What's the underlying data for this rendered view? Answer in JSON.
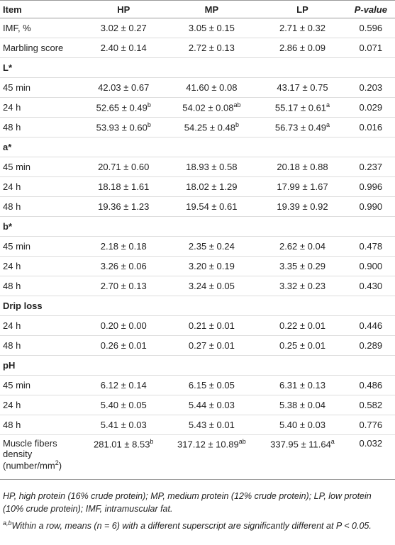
{
  "table": {
    "header": [
      "Item",
      "HP",
      "MP",
      "LP",
      "P-value"
    ],
    "rows": [
      [
        "IMF, %",
        "3.02 ± 0.27",
        "3.05 ± 0.15",
        "2.71 ± 0.32",
        "0.596"
      ],
      [
        "Marbling score",
        "2.40 ± 0.14",
        "2.72 ± 0.13",
        "2.86 ± 0.09",
        "0.071"
      ],
      [
        "L*"
      ],
      [
        "45 min",
        "42.03 ± 0.67",
        "41.60 ± 0.08",
        "43.17 ± 0.75",
        "0.203"
      ],
      [
        "24 h",
        {
          "text": "52.65 ± 0.49",
          "sup": "b"
        },
        {
          "text": "54.02 ± 0.08",
          "sup": "ab"
        },
        {
          "text": "55.17 ± 0.61",
          "sup": "a"
        },
        "0.029"
      ],
      [
        "48 h",
        {
          "text": "53.93 ± 0.60",
          "sup": "b"
        },
        {
          "text": "54.25 ± 0.48",
          "sup": "b"
        },
        {
          "text": "56.73 ± 0.49",
          "sup": "a"
        },
        "0.016"
      ],
      [
        "a*"
      ],
      [
        "45 min",
        "20.71 ± 0.60",
        "18.93 ± 0.58",
        "20.18 ± 0.88",
        "0.237"
      ],
      [
        "24 h",
        "18.18 ± 1.61",
        "18.02 ± 1.29",
        "17.99 ± 1.67",
        "0.996"
      ],
      [
        "48 h",
        "19.36 ± 1.23",
        "19.54 ± 0.61",
        "19.39 ± 0.92",
        "0.990"
      ],
      [
        "b*"
      ],
      [
        "45 min",
        "2.18 ± 0.18",
        "2.35 ± 0.24",
        "2.62 ± 0.04",
        "0.478"
      ],
      [
        "24 h",
        "3.26 ± 0.06",
        "3.20 ± 0.19",
        "3.35 ± 0.29",
        "0.900"
      ],
      [
        "48 h",
        "2.70 ± 0.13",
        "3.24 ± 0.05",
        "3.32 ± 0.23",
        "0.430"
      ],
      [
        "Drip loss"
      ],
      [
        "24 h",
        "0.20 ± 0.00",
        "0.21 ± 0.01",
        "0.22 ± 0.01",
        "0.446"
      ],
      [
        "48 h",
        "0.26 ± 0.01",
        "0.27 ± 0.01",
        "0.25 ± 0.01",
        "0.289"
      ],
      [
        "pH"
      ],
      [
        "45 min",
        "6.12 ± 0.14",
        "6.15 ± 0.05",
        "6.31 ± 0.13",
        "0.486"
      ],
      [
        "24 h",
        "5.40 ± 0.05",
        "5.44 ± 0.03",
        "5.38 ± 0.04",
        "0.582"
      ],
      [
        "48 h",
        "5.41 ± 0.03",
        "5.43 ± 0.01",
        "5.40 ± 0.03",
        "0.776"
      ],
      [
        {
          "text": "Muscle fibers density (number/mm",
          "sup": "2",
          "after": ")"
        },
        {
          "text": "281.01 ± 8.53",
          "sup": "b"
        },
        {
          "text": "317.12 ± 10.89",
          "sup": "ab"
        },
        {
          "text": "337.95 ± 11.64",
          "sup": "a"
        },
        "0.032"
      ]
    ]
  },
  "footnotes": [
    {
      "text": "HP, high protein (16% crude protein); MP, medium protein (12% crude protein); LP, low protein (10% crude protein); IMF, intramuscular fat."
    },
    {
      "sup": "a,b",
      "text": "Within a row, means (n = 6) with a different superscript are significantly different at P < 0.05."
    }
  ]
}
